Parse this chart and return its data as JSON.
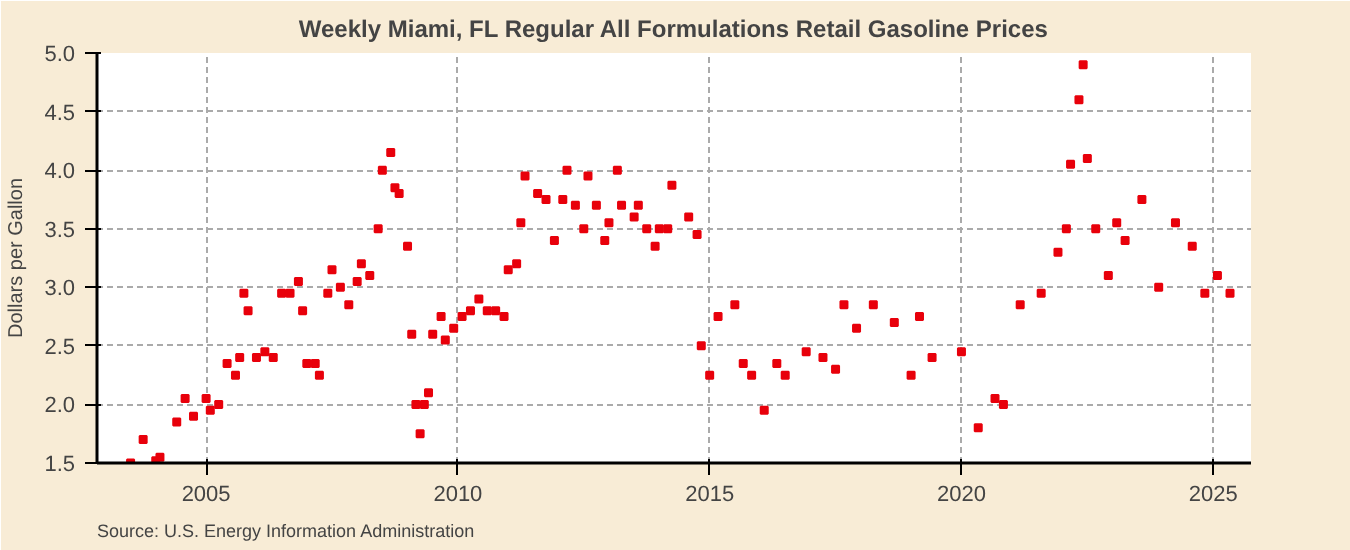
{
  "chart_data": {
    "type": "scatter",
    "title": "Weekly Miami, FL Regular All Formulations Retail Gasoline Prices",
    "ylabel": "Dollars per Gallon",
    "annotations": [
      "Source: U.S. Energy Information Administration"
    ],
    "x": [
      "2003-07",
      "2003-10",
      "2004-01",
      "2004-02",
      "2004-06",
      "2004-08",
      "2004-10",
      "2005-01",
      "2005-02",
      "2005-04",
      "2005-06",
      "2005-08",
      "2005-09",
      "2005-10",
      "2005-11",
      "2006-01",
      "2006-03",
      "2006-05",
      "2006-07",
      "2006-09",
      "2006-11",
      "2006-12",
      "2007-01",
      "2007-03",
      "2007-04",
      "2007-06",
      "2007-07",
      "2007-09",
      "2007-11",
      "2008-01",
      "2008-02",
      "2008-04",
      "2008-06",
      "2008-07",
      "2008-09",
      "2008-10",
      "2008-11",
      "2009-01",
      "2009-02",
      "2009-03",
      "2009-04",
      "2009-05",
      "2009-06",
      "2009-07",
      "2009-09",
      "2009-10",
      "2009-12",
      "2010-02",
      "2010-04",
      "2010-06",
      "2010-08",
      "2010-10",
      "2010-12",
      "2011-01",
      "2011-03",
      "2011-04",
      "2011-05",
      "2011-08",
      "2011-10",
      "2011-12",
      "2012-02",
      "2012-03",
      "2012-05",
      "2012-07",
      "2012-08",
      "2012-10",
      "2012-12",
      "2013-01",
      "2013-03",
      "2013-04",
      "2013-07",
      "2013-08",
      "2013-10",
      "2013-12",
      "2014-01",
      "2014-03",
      "2014-04",
      "2014-08",
      "2014-10",
      "2014-11",
      "2015-01",
      "2015-03",
      "2015-07",
      "2015-09",
      "2015-11",
      "2016-02",
      "2016-05",
      "2016-07",
      "2016-12",
      "2017-04",
      "2017-07",
      "2017-08",
      "2017-09",
      "2017-12",
      "2018-04",
      "2018-09",
      "2019-01",
      "2019-03",
      "2019-06",
      "2020-01",
      "2020-05",
      "2020-09",
      "2020-11",
      "2021-03",
      "2021-08",
      "2021-12",
      "2022-02",
      "2022-03",
      "2022-05",
      "2022-06",
      "2022-07",
      "2022-09",
      "2022-12",
      "2023-02",
      "2023-04",
      "2023-08",
      "2023-12",
      "2024-04",
      "2024-08",
      "2024-11",
      "2025-02",
      "2025-05"
    ],
    "values": [
      1.5,
      1.7,
      1.52,
      1.55,
      1.85,
      2.05,
      1.9,
      2.05,
      1.95,
      2.0,
      2.35,
      2.25,
      2.4,
      2.95,
      2.8,
      2.4,
      2.45,
      2.4,
      2.95,
      2.95,
      3.05,
      2.8,
      2.35,
      2.35,
      2.25,
      2.95,
      3.15,
      3.0,
      2.85,
      3.05,
      3.2,
      3.1,
      3.5,
      4.0,
      4.15,
      3.85,
      3.8,
      3.35,
      2.6,
      2.0,
      1.75,
      2.0,
      2.1,
      2.6,
      2.75,
      2.55,
      2.65,
      2.75,
      2.8,
      2.9,
      2.8,
      2.8,
      2.75,
      3.15,
      3.2,
      3.55,
      3.95,
      3.8,
      3.75,
      3.4,
      3.75,
      4.0,
      3.7,
      3.5,
      3.95,
      3.7,
      3.4,
      3.55,
      4.0,
      3.7,
      3.6,
      3.7,
      3.5,
      3.35,
      3.5,
      3.5,
      3.87,
      3.6,
      3.45,
      2.5,
      2.25,
      2.75,
      2.85,
      2.35,
      2.25,
      1.95,
      2.35,
      2.25,
      2.45,
      2.4,
      2.3,
      null,
      2.85,
      2.65,
      2.85,
      2.7,
      2.25,
      2.75,
      2.4,
      2.45,
      1.8,
      2.05,
      2.0,
      2.85,
      2.95,
      3.3,
      3.5,
      4.05,
      4.6,
      4.9,
      4.1,
      3.5,
      3.1,
      3.55,
      3.4,
      3.75,
      3.0,
      3.55,
      3.35,
      2.95,
      3.1,
      2.95
    ],
    "color": "#e8000b",
    "marker": "square",
    "xlim": [
      "2002-11",
      "2025-10"
    ],
    "ylim": [
      1.5,
      5.0
    ],
    "xticks": [
      "2005",
      "2010",
      "2015",
      "2020",
      "2025"
    ],
    "yticks": [
      {
        "value": 1.5,
        "label": "1.5"
      },
      {
        "value": 2.0,
        "label": "2.0"
      },
      {
        "value": 2.5,
        "label": "2.5"
      },
      {
        "value": 3.0,
        "label": "3.0"
      },
      {
        "value": 3.5,
        "label": "3.5"
      },
      {
        "value": 4.0,
        "label": "4.0"
      },
      {
        "value": 4.5,
        "label": "4.5"
      },
      {
        "value": 5.0,
        "label": "5.0"
      }
    ],
    "grid": true
  }
}
